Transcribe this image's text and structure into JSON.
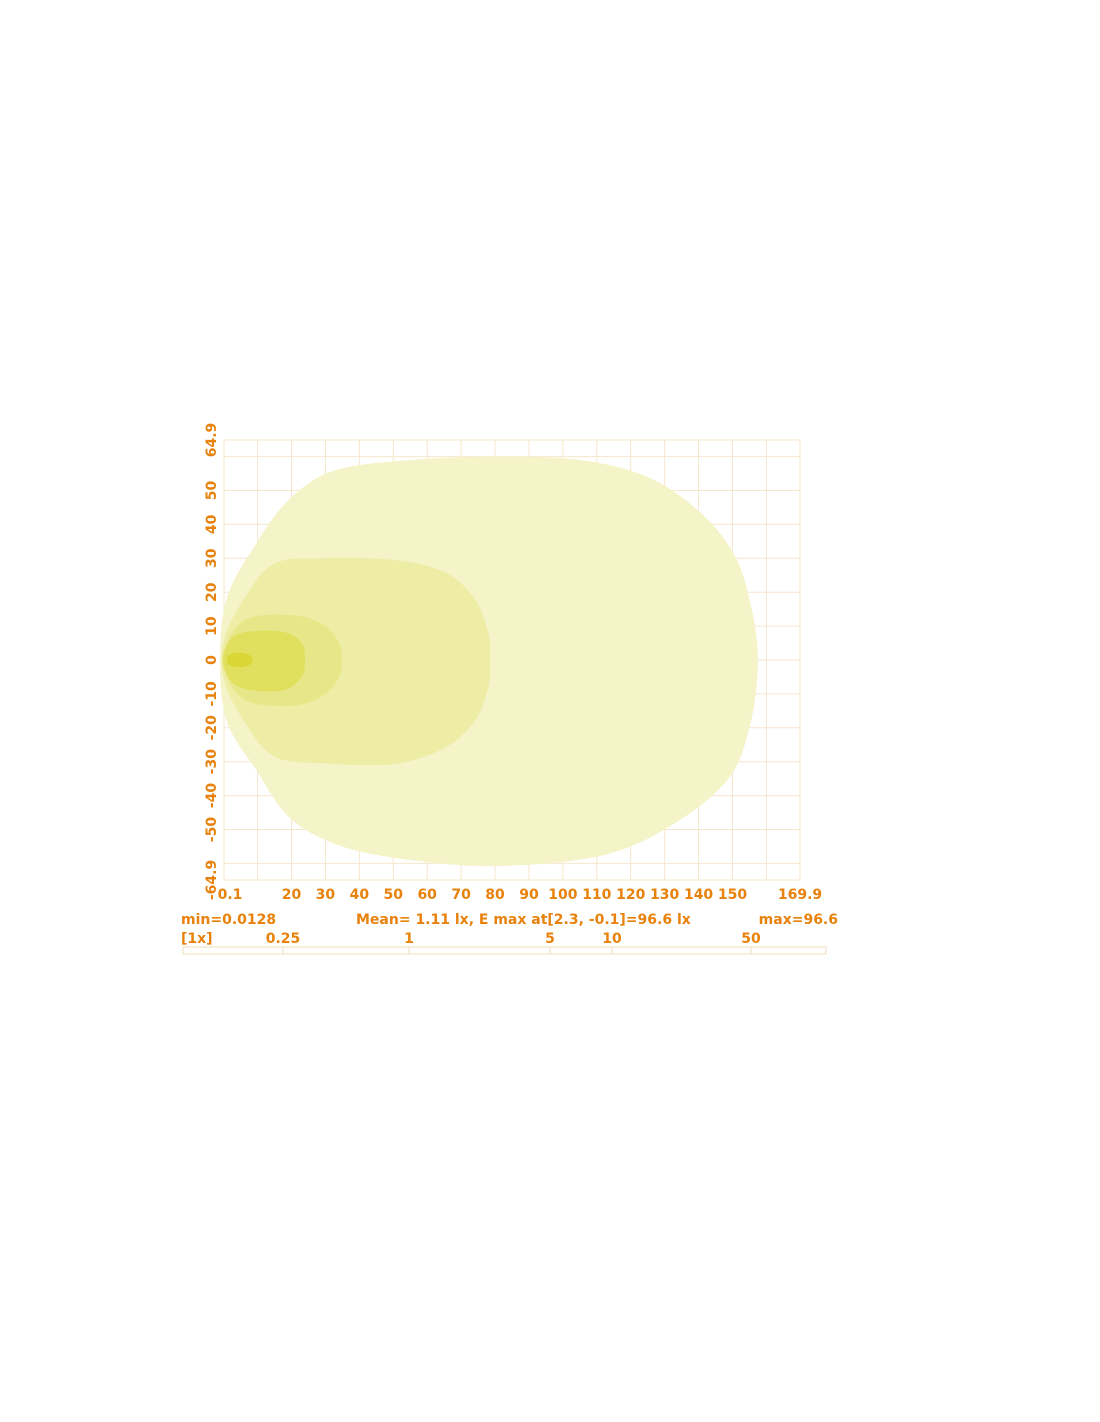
{
  "chart_data": {
    "type": "contour",
    "xlim": [
      0.1,
      169.9
    ],
    "ylim": [
      -64.9,
      64.9
    ],
    "xticks": [
      "0.1",
      "20",
      "30",
      "40",
      "50",
      "60",
      "70",
      "80",
      "90",
      "100",
      "110",
      "120",
      "130",
      "140",
      "150",
      "169.9"
    ],
    "xtick_values": [
      0.1,
      20,
      30,
      40,
      50,
      60,
      70,
      80,
      90,
      100,
      110,
      120,
      130,
      140,
      150,
      169.9
    ],
    "yticks": [
      "64.9",
      "50",
      "40",
      "30",
      "20",
      "10",
      "0",
      "-10",
      "-20",
      "-30",
      "-40",
      "-50",
      "-64.9"
    ],
    "ytick_values": [
      64.9,
      50,
      40,
      30,
      20,
      10,
      0,
      -10,
      -20,
      -30,
      -40,
      -50,
      -64.9
    ],
    "grid": true,
    "grid_color": "#f6e6cc",
    "text_color": "#e8820c",
    "contours": [
      {
        "level": 0.25,
        "color": "#f5f3c8",
        "points": [
          [
            0.1,
            15
          ],
          [
            10,
            35
          ],
          [
            20,
            48
          ],
          [
            33,
            56
          ],
          [
            55,
            59
          ],
          [
            80,
            60
          ],
          [
            105,
            59
          ],
          [
            125,
            54
          ],
          [
            140,
            44
          ],
          [
            150,
            32
          ],
          [
            155,
            18
          ],
          [
            157.5,
            0
          ],
          [
            155,
            -20
          ],
          [
            148,
            -36
          ],
          [
            130,
            -50
          ],
          [
            110,
            -58
          ],
          [
            80,
            -60.8
          ],
          [
            55,
            -59
          ],
          [
            35,
            -55
          ],
          [
            20,
            -47
          ],
          [
            10,
            -33
          ],
          [
            0.1,
            -15
          ]
        ]
      },
      {
        "level": 1,
        "color": "#ededa6",
        "points": [
          [
            0.1,
            6
          ],
          [
            6,
            18
          ],
          [
            15,
            28.5
          ],
          [
            30,
            30
          ],
          [
            50,
            29.5
          ],
          [
            65,
            26
          ],
          [
            74,
            18
          ],
          [
            78,
            8
          ],
          [
            78.5,
            0
          ],
          [
            78,
            -8
          ],
          [
            74,
            -18
          ],
          [
            65,
            -26
          ],
          [
            50,
            -30.7
          ],
          [
            30,
            -30.5
          ],
          [
            15,
            -28.5
          ],
          [
            6,
            -18
          ],
          [
            0.1,
            -6
          ]
        ]
      },
      {
        "level": 5,
        "color": "#e7e688",
        "points": [
          [
            0.1,
            3
          ],
          [
            4,
            10
          ],
          [
            10,
            13
          ],
          [
            22,
            13
          ],
          [
            30,
            10
          ],
          [
            34,
            5
          ],
          [
            34.8,
            0
          ],
          [
            34,
            -5
          ],
          [
            30,
            -10
          ],
          [
            22,
            -13.3
          ],
          [
            10,
            -13
          ],
          [
            4,
            -10
          ],
          [
            0.1,
            -3
          ]
        ]
      },
      {
        "level": 10,
        "color": "#e1df5e",
        "points": [
          [
            0.1,
            2
          ],
          [
            3,
            7
          ],
          [
            9,
            8.5
          ],
          [
            18,
            8.2
          ],
          [
            23,
            5
          ],
          [
            24,
            0
          ],
          [
            23,
            -5
          ],
          [
            18,
            -8.8
          ],
          [
            9,
            -9
          ],
          [
            3,
            -7
          ],
          [
            0.1,
            -2
          ]
        ]
      },
      {
        "level": 50,
        "color": "#d9d635",
        "points": [
          [
            1.2,
            1
          ],
          [
            3,
            2
          ],
          [
            6,
            2
          ],
          [
            8.2,
            1
          ],
          [
            8.2,
            -1
          ],
          [
            6,
            -2
          ],
          [
            3,
            -2
          ],
          [
            1.2,
            -1
          ]
        ]
      }
    ],
    "stats": {
      "min": "min=0.0128",
      "mean": "Mean= 1.11 lx, E max at[2.3, -0.1]=96.6 lx",
      "max": "max=96.6"
    },
    "scale_bar": {
      "labels": [
        "[1x]",
        "0.25",
        "1",
        "5",
        "10",
        "50"
      ]
    }
  }
}
